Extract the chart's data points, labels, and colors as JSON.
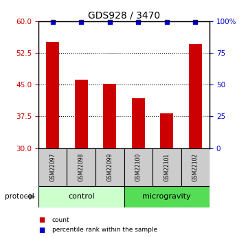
{
  "title": "GDS928 / 3470",
  "samples": [
    "GSM22097",
    "GSM22098",
    "GSM22099",
    "GSM22100",
    "GSM22101",
    "GSM22102"
  ],
  "bar_values": [
    55.2,
    46.2,
    45.2,
    41.8,
    38.2,
    54.7
  ],
  "percentile_values": [
    99.5,
    99.5,
    99.5,
    99.5,
    99.5,
    99.5
  ],
  "bar_color": "#cc0000",
  "percentile_color": "#0000cc",
  "ylim_left": [
    30,
    60
  ],
  "yticks_left": [
    30,
    37.5,
    45,
    52.5,
    60
  ],
  "yticks_right": [
    0,
    25,
    50,
    75,
    100
  ],
  "ylim_right": [
    0,
    100
  ],
  "groups": [
    {
      "label": "control",
      "indices": [
        0,
        1,
        2
      ],
      "color": "#ccffcc"
    },
    {
      "label": "microgravity",
      "indices": [
        3,
        4,
        5
      ],
      "color": "#55dd55"
    }
  ],
  "protocol_label": "protocol",
  "legend_items": [
    {
      "label": "count",
      "color": "#cc0000"
    },
    {
      "label": "percentile rank within the sample",
      "color": "#0000cc"
    }
  ],
  "bg_color": "#ffffff",
  "tick_label_color_left": "#cc0000",
  "tick_label_color_right": "#0000cc",
  "sample_box_color": "#cccccc"
}
